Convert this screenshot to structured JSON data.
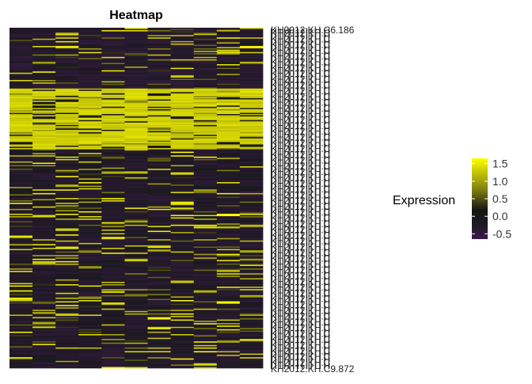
{
  "chart_data": {
    "type": "heatmap",
    "title": "Heatmap",
    "xlabel": "",
    "ylabel": "",
    "n_columns": 11,
    "n_rows": 280,
    "row_label_prefix": "KH2012:KH.C",
    "row_labels_visible": {
      "first": "KH2012:KH.C6.186",
      "last": "KH2012:KH.C9.872"
    },
    "legend": {
      "title": "Expression",
      "ticks": [
        1.5,
        1.0,
        0.5,
        0.0,
        -0.5
      ],
      "tick_labels": [
        "1.5",
        "1.0",
        "0.5",
        "0.0",
        "-0.5"
      ],
      "range": [
        -0.65,
        1.65
      ],
      "placement": "right"
    },
    "colorscale": [
      "#3a1a4a",
      "#1e1a22",
      "#141414",
      "#9a9a10",
      "#ffff00"
    ],
    "blocks": [
      {
        "rows": [
          0,
          50
        ],
        "base": -0.35,
        "p_high": 0.07,
        "label": "mostly low"
      },
      {
        "rows": [
          50,
          100
        ],
        "base": 1.45,
        "p_low": 0.14,
        "label": "high"
      },
      {
        "rows": [
          100,
          280
        ],
        "base": -0.3,
        "p_high": 0.1,
        "label": "mostly low"
      }
    ],
    "column_bias": [
      0.0,
      0.02,
      0.03,
      0.0,
      0.02,
      0.01,
      0.0,
      0.02,
      0.01,
      0.05,
      0.01
    ]
  }
}
